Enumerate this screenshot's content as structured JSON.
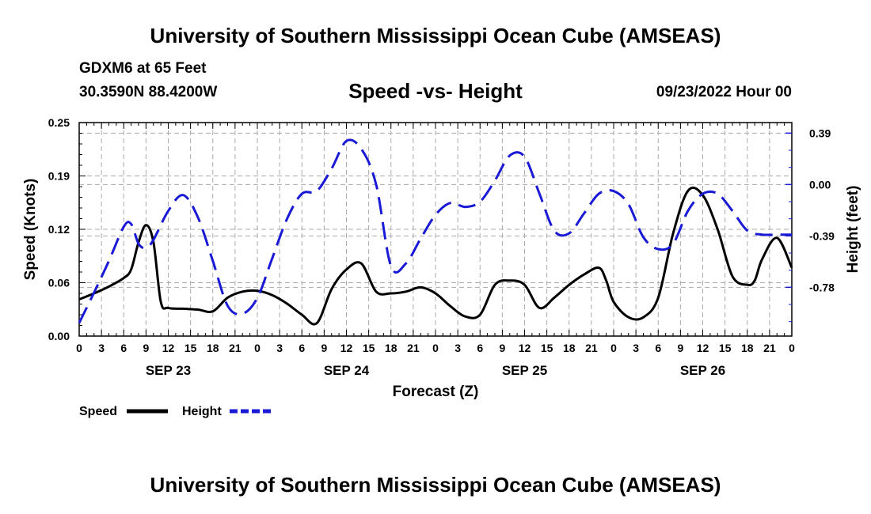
{
  "header": {
    "main_title": "University of Southern Mississippi Ocean Cube (AMSEAS)",
    "station": "GDXM6 at 65 Feet",
    "coords": "30.3590N  88.4200W",
    "datetime": "09/23/2022 Hour 00"
  },
  "footer": {
    "title": "University of Southern Mississippi Ocean Cube (AMSEAS)"
  },
  "colors": {
    "speed": "#000000",
    "height": "#1a1ad6",
    "grid": "#aaaaaa"
  },
  "chart_data": {
    "type": "line",
    "title": "Speed -vs- Height",
    "xlabel": "Forecast (Z)",
    "ylabel": "Speed (Knots)",
    "y2label": "Height (feet)",
    "ylim": [
      0,
      0.25
    ],
    "y2lim": [
      -1.15,
      0.47
    ],
    "xlim": [
      0,
      96
    ],
    "yticks": [
      "0.00",
      "0.06",
      "0.12",
      "0.19",
      "0.25"
    ],
    "ytick_values": [
      0,
      0.0625,
      0.125,
      0.1875,
      0.25
    ],
    "y2ticks": [
      "0.39",
      "0.00",
      "-0.39",
      "-0.78"
    ],
    "y2tick_values": [
      0.39,
      0,
      -0.39,
      -0.78
    ],
    "xtick_labels": [
      "0",
      "3",
      "6",
      "9",
      "12",
      "15",
      "18",
      "21",
      "0",
      "3",
      "6",
      "9",
      "12",
      "15",
      "18",
      "21",
      "0",
      "3",
      "6",
      "9",
      "12",
      "15",
      "18",
      "21",
      "0",
      "3",
      "6",
      "9",
      "12",
      "15",
      "18",
      "21",
      "0"
    ],
    "day_labels": [
      {
        "label": "SEP 23",
        "hour": 12
      },
      {
        "label": "SEP 24",
        "hour": 36
      },
      {
        "label": "SEP 25",
        "hour": 60
      },
      {
        "label": "SEP 26",
        "hour": 84
      }
    ],
    "series": [
      {
        "name": "Speed",
        "axis": "left",
        "style": "solid",
        "x": [
          0,
          2,
          4,
          6,
          7,
          8,
          9,
          10,
          11,
          12,
          14,
          16,
          18,
          20,
          22,
          24,
          26,
          28,
          30,
          32,
          34,
          36,
          38,
          40,
          42,
          44,
          46,
          48,
          50,
          52,
          54,
          56,
          58,
          60,
          62,
          64,
          66,
          68,
          70,
          71,
          72,
          74,
          76,
          78,
          80,
          82,
          84,
          86,
          88,
          90,
          91,
          92,
          94,
          96
        ],
        "values": [
          0.043,
          0.05,
          0.058,
          0.068,
          0.078,
          0.11,
          0.13,
          0.11,
          0.04,
          0.033,
          0.032,
          0.031,
          0.029,
          0.045,
          0.052,
          0.053,
          0.048,
          0.038,
          0.025,
          0.015,
          0.055,
          0.078,
          0.085,
          0.052,
          0.05,
          0.052,
          0.057,
          0.05,
          0.035,
          0.023,
          0.025,
          0.06,
          0.065,
          0.06,
          0.033,
          0.045,
          0.06,
          0.072,
          0.08,
          0.065,
          0.04,
          0.022,
          0.022,
          0.045,
          0.12,
          0.17,
          0.165,
          0.125,
          0.07,
          0.06,
          0.065,
          0.09,
          0.115,
          0.08
        ]
      },
      {
        "name": "Height",
        "axis": "right",
        "style": "dashed",
        "x": [
          0,
          2,
          4,
          6,
          7,
          8,
          9,
          10,
          12,
          14,
          16,
          18,
          20,
          22,
          24,
          26,
          28,
          30,
          32,
          34,
          36,
          38,
          40,
          42,
          44,
          46,
          48,
          50,
          52,
          54,
          56,
          58,
          60,
          62,
          64,
          66,
          68,
          70,
          72,
          74,
          76,
          78,
          80,
          82,
          84,
          86,
          88,
          90,
          92,
          94,
          96
        ],
        "values": [
          -1.05,
          -0.82,
          -0.58,
          -0.32,
          -0.3,
          -0.45,
          -0.48,
          -0.42,
          -0.2,
          -0.08,
          -0.25,
          -0.58,
          -0.92,
          -0.98,
          -0.86,
          -0.56,
          -0.26,
          -0.07,
          -0.05,
          0.12,
          0.33,
          0.27,
          0.0,
          -0.62,
          -0.6,
          -0.41,
          -0.23,
          -0.14,
          -0.17,
          -0.13,
          0.03,
          0.22,
          0.21,
          -0.07,
          -0.35,
          -0.37,
          -0.22,
          -0.07,
          -0.05,
          -0.15,
          -0.4,
          -0.49,
          -0.45,
          -0.2,
          -0.07,
          -0.07,
          -0.2,
          -0.35,
          -0.38,
          -0.38,
          -0.38
        ]
      }
    ]
  }
}
